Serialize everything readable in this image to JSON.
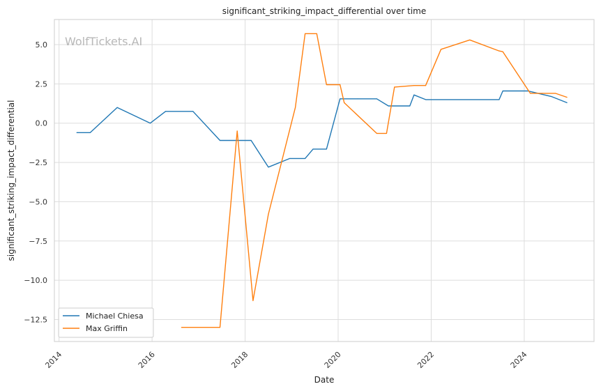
{
  "chart_data": {
    "type": "line",
    "title": "significant_striking_impact_differential over time",
    "xlabel": "Date",
    "ylabel": "significant_striking_impact_differential",
    "watermark": "WolfTickets.AI",
    "xlim": [
      2013.9,
      2025.5
    ],
    "ylim": [
      -13.9,
      6.6
    ],
    "x_ticks": [
      2014,
      2016,
      2018,
      2020,
      2022,
      2024
    ],
    "x_tick_labels": [
      "2014",
      "2016",
      "2018",
      "2020",
      "2022",
      "2024"
    ],
    "y_ticks": [
      5.0,
      2.5,
      0.0,
      -2.5,
      -5.0,
      -7.5,
      -10.0,
      -12.5
    ],
    "y_tick_labels": [
      "5.0",
      "2.5",
      "0.0",
      "−2.5",
      "−5.0",
      "−7.5",
      "−10.0",
      "−12.5"
    ],
    "grid": true,
    "legend_position": "lower-left",
    "series": [
      {
        "name": "Michael Chiesa",
        "color": "#1f77b4",
        "x": [
          2014.38,
          2014.67,
          2015.25,
          2015.96,
          2016.29,
          2016.88,
          2017.46,
          2017.83,
          2018.13,
          2018.5,
          2018.96,
          2019.29,
          2019.46,
          2019.75,
          2020.04,
          2020.42,
          2020.83,
          2021.08,
          2021.54,
          2021.63,
          2021.88,
          2023.46,
          2023.54,
          2024.08,
          2024.58,
          2024.92
        ],
        "y": [
          -0.6,
          -0.6,
          1.0,
          0.0,
          0.75,
          0.75,
          -1.1,
          -1.1,
          -1.1,
          -2.8,
          -2.25,
          -2.25,
          -1.65,
          -1.65,
          1.55,
          1.55,
          1.55,
          1.1,
          1.1,
          1.8,
          1.5,
          1.5,
          2.05,
          2.05,
          1.7,
          1.3
        ]
      },
      {
        "name": "Max Griffin",
        "color": "#ff7f0e",
        "x": [
          2016.63,
          2017.46,
          2017.83,
          2018.17,
          2018.5,
          2019.08,
          2019.29,
          2019.54,
          2019.75,
          2020.04,
          2020.13,
          2020.83,
          2021.04,
          2021.21,
          2021.63,
          2021.88,
          2022.21,
          2022.83,
          2023.46,
          2023.54,
          2024.13,
          2024.67,
          2024.92
        ],
        "y": [
          -13.0,
          -13.0,
          -0.5,
          -11.3,
          -5.8,
          1.0,
          5.7,
          5.7,
          2.45,
          2.45,
          1.3,
          -0.65,
          -0.65,
          2.3,
          2.4,
          2.4,
          4.7,
          5.3,
          4.6,
          4.55,
          1.9,
          1.9,
          1.65
        ]
      }
    ]
  }
}
